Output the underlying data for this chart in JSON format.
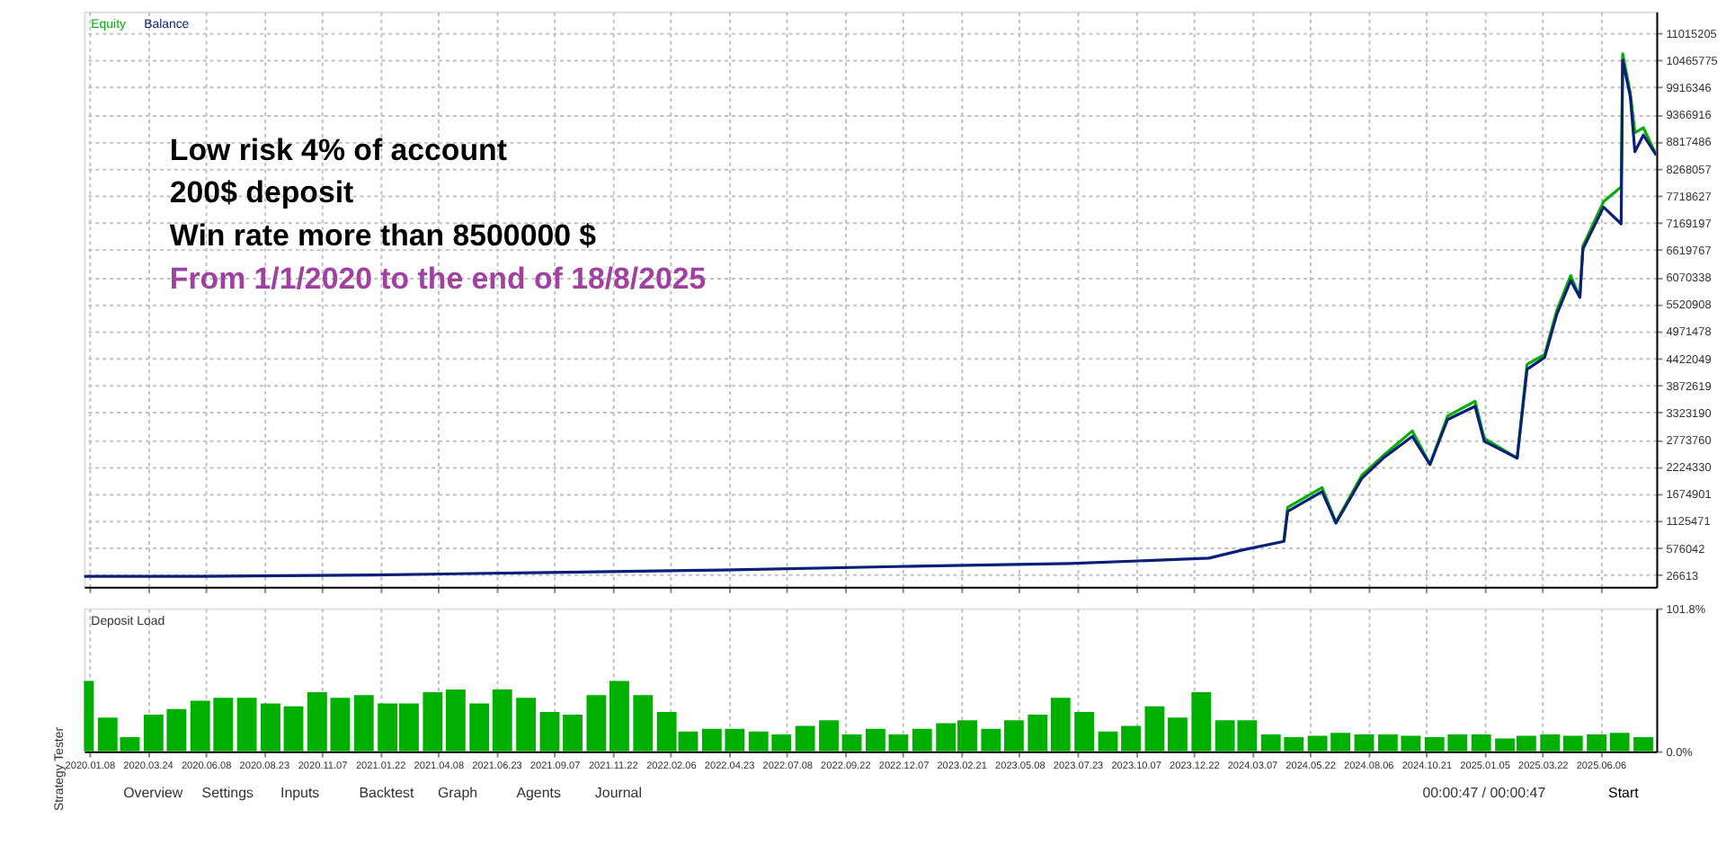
{
  "chart_data": [
    {
      "type": "line",
      "grid": true,
      "tick_labels": "y",
      "line_style": "solid",
      "xlim": [
        "2020-01-01",
        "2025-08-18"
      ],
      "xticks": [
        {
          "value": "2020-01-08",
          "label": null
        },
        {
          "value": "2020-03-24",
          "label": null
        },
        {
          "value": "2020-06-08",
          "label": null
        },
        {
          "value": "2020-08-23",
          "label": null
        },
        {
          "value": "2020-11-07",
          "label": null
        },
        {
          "value": "2021-01-22",
          "label": null
        },
        {
          "value": "2021-04-08",
          "label": null
        },
        {
          "value": "2021-06-23",
          "label": null
        },
        {
          "value": "2021-09-07",
          "label": null
        },
        {
          "value": "2021-11-22",
          "label": null
        },
        {
          "value": "2022-02-06",
          "label": null
        },
        {
          "value": "2022-04-23",
          "label": null
        },
        {
          "value": "2022-07-08",
          "label": null
        },
        {
          "value": "2022-09-22",
          "label": null
        },
        {
          "value": "2022-12-07",
          "label": null
        },
        {
          "value": "2023-02-21",
          "label": null
        },
        {
          "value": "2023-05-08",
          "label": null
        },
        {
          "value": "2023-07-23",
          "label": null
        },
        {
          "value": "2023-10-07",
          "label": null
        },
        {
          "value": "2023-12-22",
          "label": null
        },
        {
          "value": "2024-03-07",
          "label": null
        },
        {
          "value": "2024-05-22",
          "label": null
        },
        {
          "value": "2024-08-06",
          "label": null
        },
        {
          "value": "2024-10-21",
          "label": null
        },
        {
          "value": "2025-01-05",
          "label": null
        },
        {
          "value": "2025-03-22",
          "label": null
        },
        {
          "value": "2025-06-06",
          "label": null
        }
      ],
      "ylim": [
        -211000,
        11456000
      ],
      "yticks": [
        26613,
        576042,
        1125471,
        1674901,
        2224330,
        2773760,
        3323190,
        3872619,
        4422049,
        4971478,
        5520908,
        6070338,
        6619767,
        7169197,
        7718627,
        8268057,
        8817486,
        9366916,
        9916346,
        10465775,
        11015205
      ],
      "x": [
        "2020-01-01",
        "2020-06-01",
        "2021-01-15",
        "2021-09-01",
        "2022-04-15",
        "2022-11-28",
        "2023-07-13",
        "2024-01-11",
        "2024-02-25",
        "2024-04-18",
        "2024-04-23",
        "2024-06-07",
        "2024-06-25",
        "2024-07-29",
        "2024-08-26",
        "2024-10-03",
        "2024-10-26",
        "2024-11-18",
        "2024-12-24",
        "2025-01-05",
        "2025-02-17",
        "2025-03-02",
        "2025-03-25",
        "2025-04-10",
        "2025-04-28",
        "2025-05-10",
        "2025-05-14",
        "2025-06-10",
        "2025-07-03",
        "2025-07-05",
        "2025-07-15",
        "2025-07-21",
        "2025-08-01",
        "2025-08-18"
      ],
      "series": [
        {
          "name": "Equity",
          "color": "#00b000",
          "values": [
            null,
            null,
            null,
            null,
            null,
            null,
            null,
            null,
            null,
            710000,
            1400000,
            1800000,
            1100000,
            2050000,
            2450000,
            2950000,
            2270000,
            3250000,
            3550000,
            2800000,
            2400000,
            4300000,
            4500000,
            5400000,
            6100000,
            5660000,
            6700000,
            7600000,
            7900000,
            10600000,
            9800000,
            9000000,
            9100000,
            8540000
          ]
        },
        {
          "name": "Balance",
          "color": "#0a1e7a",
          "values": [
            0,
            0,
            30000,
            80000,
            130000,
            200000,
            260000,
            370000,
            540000,
            710000,
            1320000,
            1720000,
            1080000,
            1990000,
            2400000,
            2840000,
            2270000,
            3180000,
            3450000,
            2740000,
            2400000,
            4200000,
            4440000,
            5320000,
            6000000,
            5660000,
            6640000,
            7490000,
            7150000,
            10470000,
            9730000,
            8610000,
            8950000,
            8540000
          ]
        }
      ],
      "annotations": [
        "Low risk 4% of account",
        "200$ deposit",
        "Win rate more than 8500000 $",
        "From 1/1/2020 to the end of 18/8/2025"
      ]
    },
    {
      "type": "bar",
      "title": "Deposit Load",
      "grid": "x",
      "color": "#00b000",
      "xlim": [
        "2020-01-01",
        "2025-08-18"
      ],
      "xticks": [
        {
          "value": "2020-01-08",
          "label": "2020.01.08"
        },
        {
          "value": "2020-03-24",
          "label": "2020.03.24"
        },
        {
          "value": "2020-06-08",
          "label": "2020.06.08"
        },
        {
          "value": "2020-08-23",
          "label": "2020.08.23"
        },
        {
          "value": "2020-11-07",
          "label": "2020.11.07"
        },
        {
          "value": "2021-01-22",
          "label": "2021.01.22"
        },
        {
          "value": "2021-04-08",
          "label": "2021.04.08"
        },
        {
          "value": "2021-06-23",
          "label": "2021.06.23"
        },
        {
          "value": "2021-09-07",
          "label": "2021.09.07"
        },
        {
          "value": "2021-11-22",
          "label": "2021.11.22"
        },
        {
          "value": "2022-02-06",
          "label": "2022.02.06"
        },
        {
          "value": "2022-04-23",
          "label": "2022.04.23"
        },
        {
          "value": "2022-07-08",
          "label": "2022.07.08"
        },
        {
          "value": "2022-09-22",
          "label": "2022.09.22"
        },
        {
          "value": "2022-12-07",
          "label": "2022.12.07"
        },
        {
          "value": "2023-02-21",
          "label": "2023.02.21"
        },
        {
          "value": "2023-05-08",
          "label": "2023.05.08"
        },
        {
          "value": "2023-07-23",
          "label": "2023.07.23"
        },
        {
          "value": "2023-10-07",
          "label": "2023.10.07"
        },
        {
          "value": "2023-12-22",
          "label": "2023.12.22"
        },
        {
          "value": "2024-03-07",
          "label": "2024.03.07"
        },
        {
          "value": "2024-05-22",
          "label": "2024.05.22"
        },
        {
          "value": "2024-08-06",
          "label": "2024.08.06"
        },
        {
          "value": "2024-10-21",
          "label": "2024.10.21"
        },
        {
          "value": "2025-01-05",
          "label": "2025.01.05"
        },
        {
          "value": "2025-03-22",
          "label": "2025.03.22"
        },
        {
          "value": "2025-06-06",
          "label": "2025.06.06"
        }
      ],
      "ylim": [
        0,
        101.8
      ],
      "yticks": [
        {
          "value": 101.8,
          "label": "101.8%"
        },
        {
          "value": 0,
          "label": "0.0%"
        }
      ],
      "x": [
        "2020-01",
        "2020-02",
        "2020-03",
        "2020-04",
        "2020-05",
        "2020-06",
        "2020-07",
        "2020-08",
        "2020-09",
        "2020-10",
        "2020-11",
        "2020-12",
        "2021-01",
        "2021-02",
        "2021-03",
        "2021-04",
        "2021-05",
        "2021-06",
        "2021-07",
        "2021-08",
        "2021-09",
        "2021-10",
        "2021-11",
        "2021-12",
        "2022-01",
        "2022-02",
        "2022-03",
        "2022-04",
        "2022-05",
        "2022-06",
        "2022-07",
        "2022-08",
        "2022-09",
        "2022-10",
        "2022-11",
        "2022-12",
        "2023-01",
        "2023-02",
        "2023-03",
        "2023-04",
        "2023-05",
        "2023-06",
        "2023-07",
        "2023-08",
        "2023-09",
        "2023-10",
        "2023-11",
        "2023-12",
        "2024-01",
        "2024-02",
        "2024-03",
        "2024-04",
        "2024-05",
        "2024-06",
        "2024-07",
        "2024-08",
        "2024-09",
        "2024-10",
        "2024-11",
        "2024-12",
        "2025-01",
        "2025-02",
        "2025-03",
        "2025-04",
        "2025-05",
        "2025-06",
        "2025-07",
        "2025-08"
      ],
      "values": [
        50,
        24,
        10,
        26,
        30,
        36,
        38,
        38,
        34,
        32,
        42,
        38,
        40,
        34,
        34,
        42,
        44,
        34,
        44,
        38,
        28,
        26,
        40,
        50,
        40,
        28,
        14,
        16,
        16,
        14,
        12,
        18,
        22,
        12,
        16,
        12,
        16,
        20,
        22,
        16,
        22,
        26,
        38,
        28,
        14,
        18,
        32,
        24,
        42,
        22,
        22,
        12,
        10,
        11,
        13,
        12,
        12,
        11,
        10,
        12,
        12,
        9,
        11,
        12,
        11,
        12,
        13,
        10
      ],
      "annotations": [
        "Overview",
        "Settings",
        "Inputs",
        "Backtest",
        "Graph",
        "Agents",
        "Journal",
        "Strategy Tester",
        "00:00:47 / 00:00:47",
        "Start"
      ]
    }
  ]
}
